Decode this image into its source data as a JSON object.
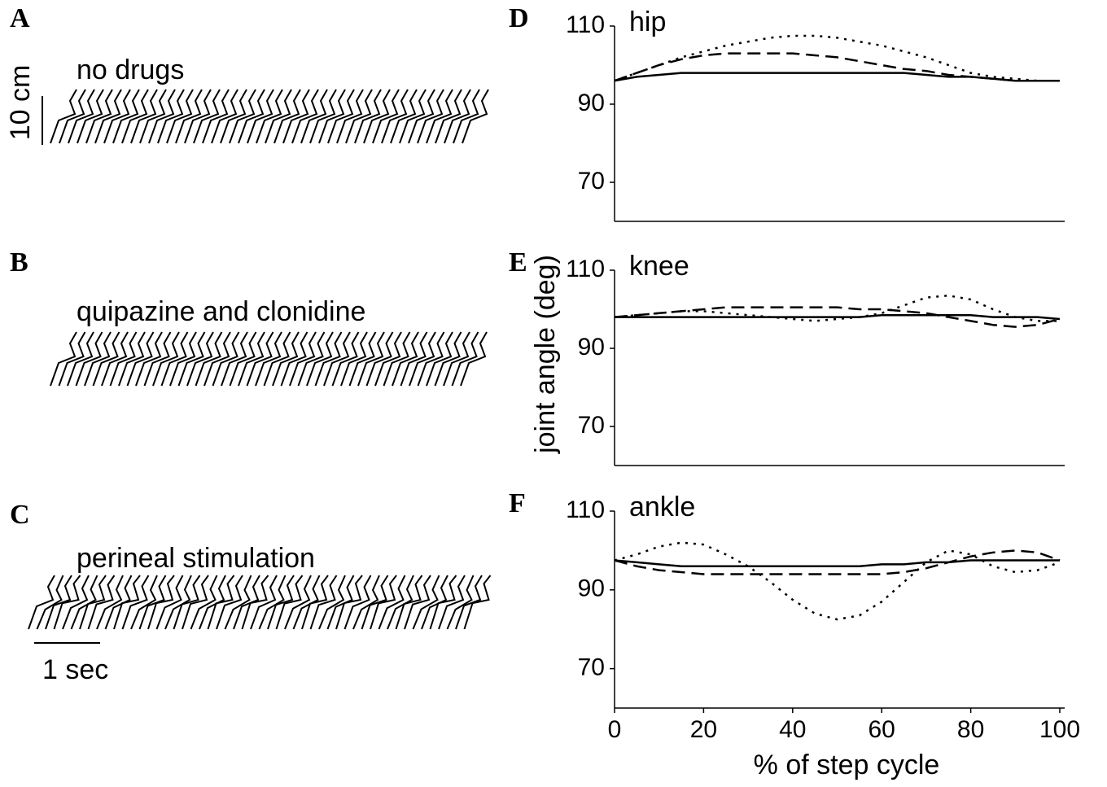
{
  "panels": [
    {
      "label": "A",
      "title": "no drugs"
    },
    {
      "label": "B",
      "title": "quipazine and clonidine"
    },
    {
      "label": "C",
      "title": "perineal stimulation"
    }
  ],
  "scale_bars": {
    "length": "10 cm",
    "time": "1 sec"
  },
  "figure": {
    "y_label": "joint angle (deg)",
    "x_label": "% of step cycle"
  },
  "chart_data": [
    {
      "type": "line",
      "panel_label": "D",
      "title": "hip",
      "x": [
        0,
        5,
        10,
        15,
        20,
        25,
        30,
        35,
        40,
        45,
        50,
        55,
        60,
        65,
        70,
        75,
        80,
        85,
        90,
        95,
        100
      ],
      "xlim": [
        0,
        100
      ],
      "ylim": [
        60,
        110
      ],
      "yticks": [
        70,
        90,
        110
      ],
      "series": [
        {
          "color": "#000000",
          "dash": "solid",
          "values": [
            96,
            97,
            97.5,
            98,
            98,
            98,
            98,
            98,
            98,
            98,
            98,
            98,
            98,
            98,
            97.5,
            97,
            97,
            96.5,
            96,
            96,
            96
          ]
        },
        {
          "color": "#000000",
          "dash": "dashed",
          "values": [
            96,
            98,
            100,
            101.5,
            102.5,
            103,
            103,
            103,
            103,
            102.5,
            102,
            101,
            100,
            99,
            98.5,
            97.5,
            97,
            96.5,
            96,
            96,
            96
          ]
        },
        {
          "color": "#000000",
          "dash": "dotted",
          "values": [
            96,
            98,
            100,
            102,
            103.5,
            105,
            106,
            107,
            107.5,
            107.5,
            107,
            106,
            105,
            103.5,
            102,
            100,
            98,
            97,
            96.5,
            96,
            96
          ]
        }
      ]
    },
    {
      "type": "line",
      "panel_label": "E",
      "title": "knee",
      "x": [
        0,
        5,
        10,
        15,
        20,
        25,
        30,
        35,
        40,
        45,
        50,
        55,
        60,
        65,
        70,
        75,
        80,
        85,
        90,
        95,
        100
      ],
      "xlim": [
        0,
        100
      ],
      "ylim": [
        60,
        110
      ],
      "yticks": [
        70,
        90,
        110
      ],
      "series": [
        {
          "color": "#000000",
          "dash": "solid",
          "values": [
            98,
            98,
            98,
            98,
            98,
            98,
            98,
            98,
            98,
            98,
            98,
            98,
            98.5,
            98.5,
            98.5,
            98.5,
            98.5,
            98,
            98,
            98,
            97.5
          ]
        },
        {
          "color": "#000000",
          "dash": "dashed",
          "values": [
            98,
            98.5,
            99,
            99.5,
            100,
            100.5,
            100.5,
            100.5,
            100.5,
            100.5,
            100.5,
            100,
            100,
            99.5,
            99,
            98,
            97,
            96,
            95.5,
            96,
            97.5
          ]
        },
        {
          "color": "#000000",
          "dash": "dotted",
          "values": [
            98,
            98.5,
            99,
            99.5,
            99.5,
            99,
            98.5,
            98,
            97.5,
            97,
            97.5,
            98,
            99,
            101,
            103,
            103.5,
            102.5,
            100,
            98,
            97,
            97
          ]
        }
      ]
    },
    {
      "type": "line",
      "panel_label": "F",
      "title": "ankle",
      "x": [
        0,
        5,
        10,
        15,
        20,
        25,
        30,
        35,
        40,
        45,
        50,
        55,
        60,
        65,
        70,
        75,
        80,
        85,
        90,
        95,
        100
      ],
      "xlim": [
        0,
        100
      ],
      "xticks": [
        0,
        20,
        40,
        60,
        80,
        100
      ],
      "ylim": [
        60,
        110
      ],
      "yticks": [
        70,
        90,
        110
      ],
      "series": [
        {
          "color": "#000000",
          "dash": "solid",
          "values": [
            97.5,
            97,
            96.5,
            96,
            96,
            96,
            96,
            96,
            96,
            96,
            96,
            96,
            96.5,
            96.5,
            97,
            97,
            97.5,
            97.5,
            97.5,
            97.5,
            97.5
          ]
        },
        {
          "color": "#000000",
          "dash": "dashed",
          "values": [
            97.5,
            96,
            95,
            94.5,
            94,
            94,
            94,
            94,
            94,
            94,
            94,
            94,
            94,
            94.5,
            95.5,
            97,
            98.5,
            99.5,
            100,
            99.5,
            97.5
          ]
        },
        {
          "color": "#000000",
          "dash": "dotted",
          "values": [
            97.5,
            99,
            101,
            102,
            101.5,
            99,
            96,
            92,
            87.5,
            84,
            82.5,
            83.5,
            87,
            92,
            97,
            100,
            99,
            96,
            94.5,
            95,
            97
          ]
        }
      ]
    }
  ]
}
